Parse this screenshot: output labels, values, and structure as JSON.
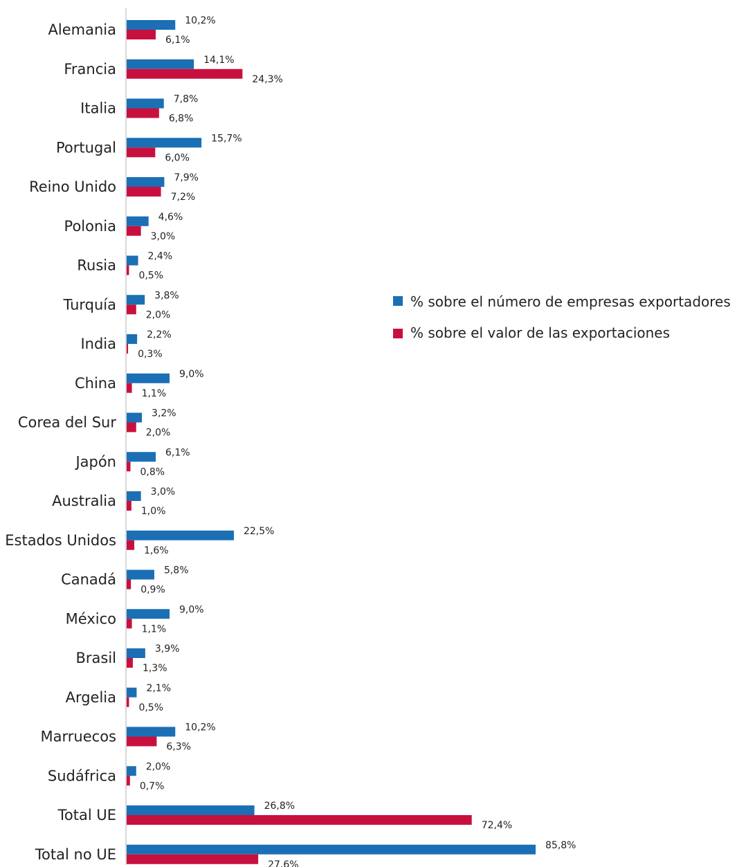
{
  "chart_data": {
    "type": "bar",
    "orientation": "horizontal",
    "title": "",
    "xlabel": "",
    "ylabel": "",
    "xlim": [
      0,
      85.8
    ],
    "grid": false,
    "legend_position": "right",
    "categories": [
      "Alemania",
      "Francia",
      "Italia",
      "Portugal",
      "Reino Unido",
      "Polonia",
      "Rusia",
      "Turquía",
      "India",
      "China",
      "Corea del Sur",
      "Japón",
      "Australia",
      "Estados Unidos",
      "Canadá",
      "México",
      "Brasil",
      "Argelia",
      "Marruecos",
      "Sudáfrica",
      "Total UE",
      "Total no UE"
    ],
    "series": [
      {
        "name": "% sobre el número de empresas exportadores",
        "color": "#1a6fb5",
        "values": [
          10.2,
          14.1,
          7.8,
          15.7,
          7.9,
          4.6,
          2.4,
          3.8,
          2.2,
          9.0,
          3.2,
          6.1,
          3.0,
          22.5,
          5.8,
          9.0,
          3.9,
          2.1,
          10.2,
          2.0,
          26.8,
          85.8
        ],
        "labels": [
          "10,2%",
          "14,1%",
          "7,8%",
          "15,7%",
          "7,9%",
          "4,6%",
          "2,4%",
          "3,8%",
          "2,2%",
          "9,0%",
          "3,2%",
          "6,1%",
          "3,0%",
          "22,5%",
          "5,8%",
          "9,0%",
          "3,9%",
          "2,1%",
          "10,2%",
          "2,0%",
          "26,8%",
          "85,8%"
        ]
      },
      {
        "name": "% sobre el valor de las exportaciones",
        "color": "#c8103e",
        "values": [
          6.1,
          24.3,
          6.8,
          6.0,
          7.2,
          3.0,
          0.5,
          2.0,
          0.3,
          1.1,
          2.0,
          0.8,
          1.0,
          1.6,
          0.9,
          1.1,
          1.3,
          0.5,
          6.3,
          0.7,
          72.4,
          27.6
        ],
        "labels": [
          "6,1%",
          "24,3%",
          "6,8%",
          "6,0%",
          "7,2%",
          "3,0%",
          "0,5%",
          "2,0%",
          "0,3%",
          "1,1%",
          "2,0%",
          "0,8%",
          "1,0%",
          "1,6%",
          "0,9%",
          "1,1%",
          "1,3%",
          "0,5%",
          "6,3%",
          "0,7%",
          "72,4%",
          "27,6%"
        ]
      }
    ]
  }
}
